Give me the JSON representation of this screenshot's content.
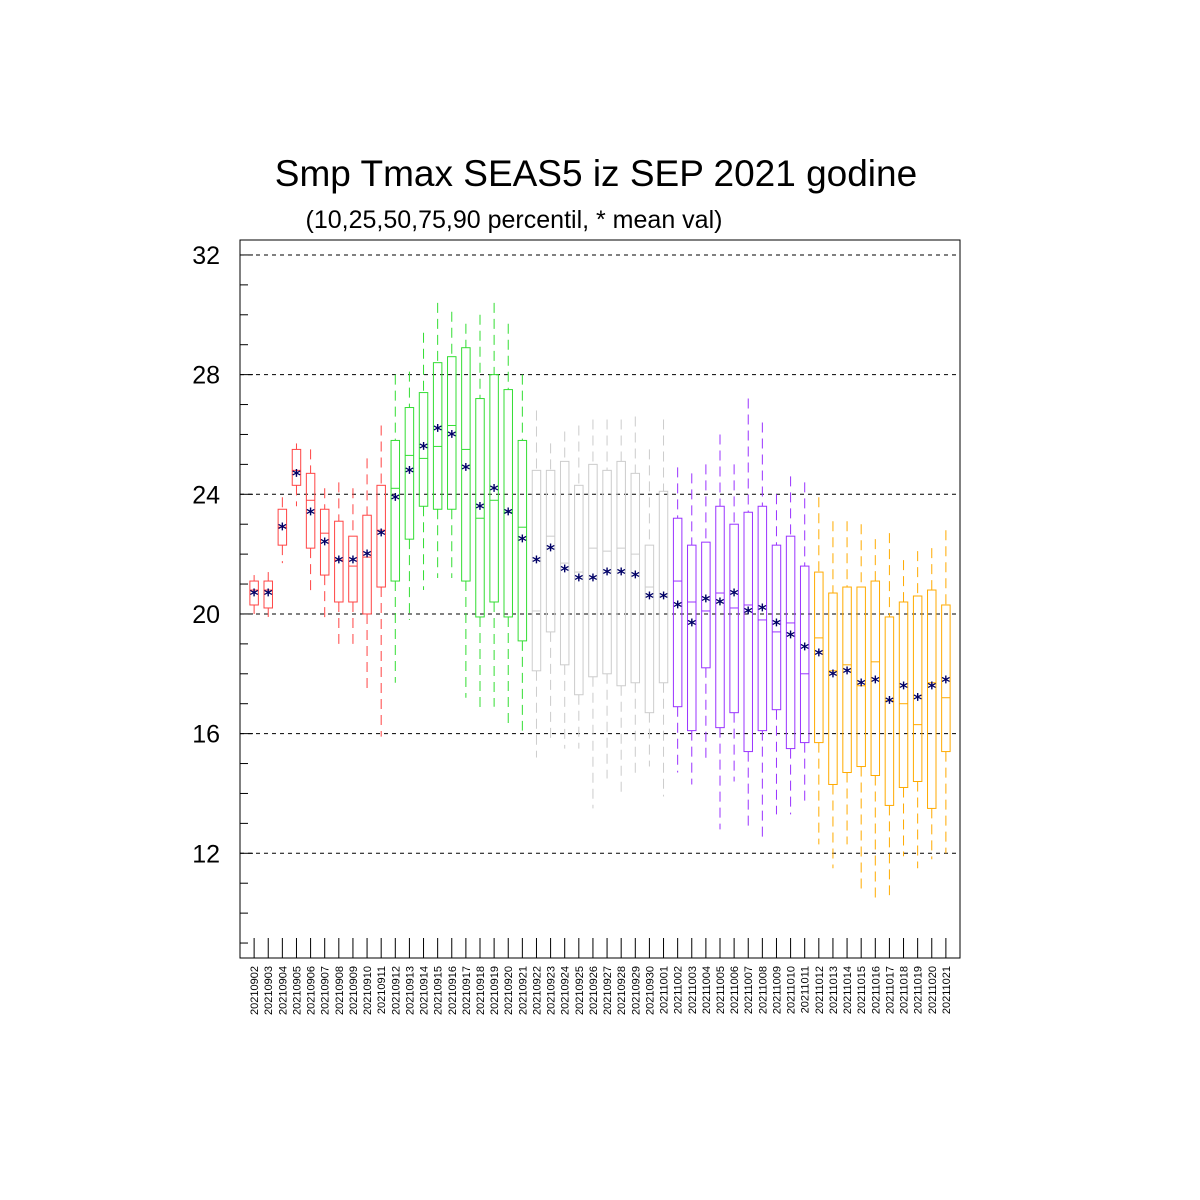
{
  "chart_data": {
    "type": "boxplot",
    "title": "Smp Tmax SEAS5 iz SEP 2021 godine",
    "subtitle": "(10,25,50,75,90 percentil, * mean val)",
    "ylim": [
      8.5,
      32.5
    ],
    "yticks": [
      12,
      16,
      20,
      24,
      28,
      32
    ],
    "grid": "horizontal dashed at major ticks",
    "mean_marker": "*",
    "group_colors": {
      "september_early": "#ff4444",
      "september_mid": "#33dd33",
      "september_late": "#cccccc",
      "october_early": "#9933ff",
      "october_late": "#ffaa00"
    },
    "categories": [
      "20210902",
      "20210903",
      "20210904",
      "20210905",
      "20210906",
      "20210907",
      "20210908",
      "20210909",
      "20210910",
      "20210911",
      "20210912",
      "20210913",
      "20210914",
      "20210915",
      "20210916",
      "20210917",
      "20210918",
      "20210919",
      "20210920",
      "20210921",
      "20210922",
      "20210923",
      "20210924",
      "20210925",
      "20210926",
      "20210927",
      "20210928",
      "20210929",
      "20210930",
      "20211001",
      "20211002",
      "20211003",
      "20211004",
      "20211005",
      "20211006",
      "20211007",
      "20211008",
      "20211009",
      "20211010",
      "20211011",
      "20211012",
      "20211013",
      "20211014",
      "20211015",
      "20211016",
      "20211017",
      "20211018",
      "20211019",
      "20211020",
      "20211021"
    ],
    "p10": [
      20.0,
      19.9,
      21.7,
      23.6,
      20.7,
      19.8,
      19.0,
      19.0,
      17.4,
      15.9,
      17.7,
      19.8,
      20.8,
      21.2,
      21.2,
      17.2,
      16.8,
      16.9,
      16.3,
      16.1,
      15.2,
      15.8,
      15.5,
      15.5,
      13.5,
      14.5,
      13.9,
      14.6,
      14.9,
      13.9,
      14.7,
      14.3,
      15.0,
      12.8,
      14.4,
      12.9,
      12.5,
      13.3,
      13.3,
      13.6,
      12.3,
      11.5,
      12.3,
      10.8,
      10.4,
      10.6,
      11.9,
      11.5,
      11.8,
      12.0
    ],
    "p25": [
      20.3,
      20.2,
      22.3,
      24.3,
      22.2,
      21.3,
      20.4,
      20.4,
      20.0,
      20.9,
      21.1,
      22.5,
      23.6,
      23.5,
      23.5,
      21.1,
      19.9,
      20.4,
      19.9,
      19.1,
      18.1,
      19.4,
      18.3,
      17.3,
      17.9,
      18.0,
      17.6,
      17.7,
      16.7,
      17.7,
      16.9,
      16.1,
      18.2,
      16.2,
      16.7,
      15.4,
      16.1,
      16.8,
      15.5,
      15.7,
      15.7,
      14.3,
      14.7,
      14.9,
      14.6,
      13.6,
      14.2,
      14.4,
      13.5,
      15.4
    ],
    "p50": [
      20.8,
      20.8,
      22.9,
      24.8,
      23.8,
      22.7,
      21.8,
      21.6,
      21.9,
      22.8,
      24.2,
      25.3,
      25.2,
      25.6,
      26.3,
      25.5,
      23.2,
      23.8,
      23.4,
      22.9,
      20.1,
      22.6,
      21.7,
      21.4,
      22.2,
      22.1,
      22.2,
      22.0,
      20.9,
      20.6,
      21.1,
      20.4,
      20.1,
      20.7,
      20.2,
      20.3,
      19.8,
      19.4,
      19.7,
      18.0,
      19.2,
      18.1,
      18.3,
      17.6,
      18.4,
      17.1,
      17.0,
      16.3,
      17.7,
      17.2
    ],
    "p75": [
      21.1,
      21.1,
      23.5,
      25.5,
      24.7,
      23.5,
      23.1,
      22.6,
      23.3,
      24.3,
      25.8,
      26.9,
      27.4,
      28.4,
      28.6,
      28.9,
      27.2,
      28.0,
      27.5,
      25.8,
      24.8,
      24.8,
      25.1,
      24.3,
      25.0,
      24.8,
      25.1,
      24.7,
      22.3,
      24.1,
      23.2,
      22.3,
      22.4,
      23.6,
      23.0,
      23.4,
      23.6,
      22.3,
      22.6,
      21.6,
      21.4,
      20.7,
      20.9,
      20.9,
      21.1,
      19.9,
      20.4,
      20.6,
      20.8,
      20.3
    ],
    "p90": [
      21.3,
      21.4,
      23.9,
      25.7,
      25.5,
      24.2,
      24.4,
      24.2,
      25.2,
      26.3,
      28.0,
      28.1,
      29.4,
      30.4,
      30.1,
      29.7,
      30.0,
      30.4,
      29.7,
      28.0,
      26.8,
      25.7,
      26.1,
      26.3,
      26.5,
      26.5,
      26.5,
      26.6,
      25.5,
      26.5,
      24.9,
      24.7,
      25.0,
      26.0,
      25.0,
      27.2,
      26.4,
      24.0,
      24.6,
      24.4,
      23.9,
      23.1,
      23.1,
      23.0,
      22.5,
      22.7,
      21.8,
      22.1,
      22.2,
      22.8
    ],
    "mean": [
      20.7,
      20.7,
      22.9,
      24.7,
      23.4,
      22.4,
      21.8,
      21.8,
      22.0,
      22.7,
      23.9,
      24.8,
      25.6,
      26.2,
      26.0,
      24.9,
      23.6,
      24.2,
      23.4,
      22.5,
      21.8,
      22.2,
      21.5,
      21.2,
      21.2,
      21.4,
      21.4,
      21.3,
      20.6,
      20.6,
      20.3,
      19.7,
      20.5,
      20.4,
      20.7,
      20.1,
      20.2,
      19.7,
      19.3,
      18.9,
      18.7,
      18.0,
      18.1,
      17.7,
      17.8,
      17.1,
      17.6,
      17.2,
      17.6,
      17.8
    ]
  }
}
